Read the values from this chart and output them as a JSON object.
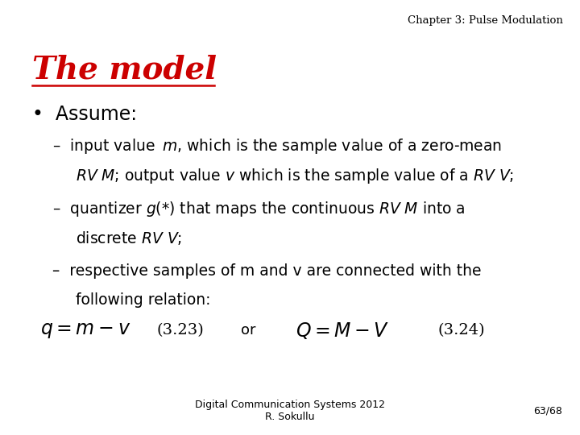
{
  "background_color": "#ffffff",
  "header_text": "Chapter 3: Pulse Modulation",
  "header_color": "#000000",
  "header_fontsize": 9.5,
  "title_text": "The model",
  "title_color": "#cc0000",
  "title_fontsize": 28,
  "bullet_fontsize": 17,
  "sub_bullet_fontsize": 13.5,
  "footer_text": "Digital Communication Systems 2012\nR. Sokullu",
  "footer_color": "#000000",
  "footer_fontsize": 9,
  "page_num": "63/68",
  "eq_fontsize": 17,
  "eq_label_fontsize": 14
}
